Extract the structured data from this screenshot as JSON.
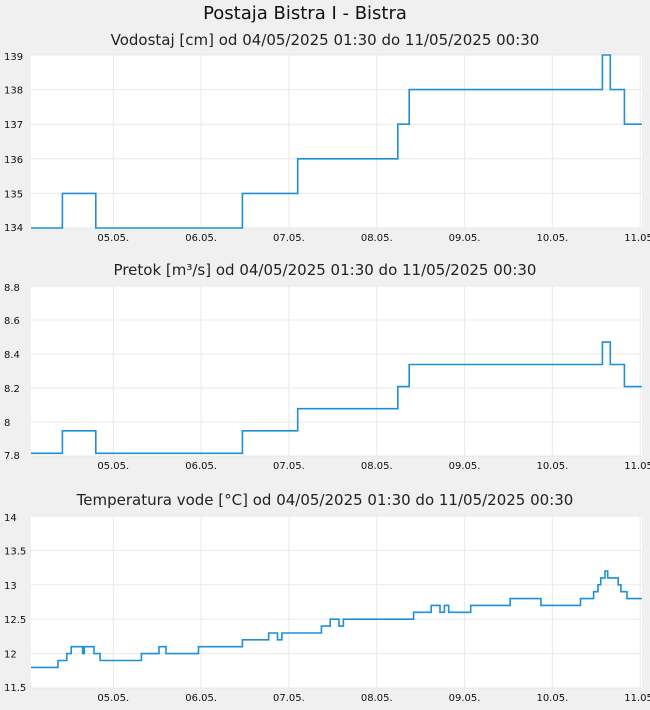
{
  "page_title": "Postaja Bistra I - Bistra",
  "series_color": "#1f8fd6",
  "chart_data": [
    {
      "type": "line",
      "title": "Vodostaj [cm] od 04/05/2025 01:30 do 11/05/2025 00:30",
      "ylim": [
        134,
        139
      ],
      "yticks": [
        "134",
        "135",
        "136",
        "137",
        "138",
        "139"
      ],
      "xticks": [
        "05.05.",
        "06.05.",
        "07.05.",
        "08.05.",
        "09.05.",
        "10.05.",
        "11.05."
      ],
      "xlim_days": [
        4.0625,
        11.02083
      ],
      "grid": true,
      "x": [
        4.0625,
        4.4,
        4.42,
        4.78,
        4.8,
        6.45,
        6.47,
        7.08,
        7.1,
        8.22,
        8.24,
        8.35,
        8.37,
        10.55,
        10.57,
        10.64,
        10.66,
        10.67,
        10.8,
        10.82,
        11.02
      ],
      "values": [
        134,
        134,
        135,
        135,
        134,
        134,
        135,
        135,
        136,
        136,
        137,
        137,
        138,
        138,
        139,
        139,
        138,
        138,
        138,
        137,
        137
      ]
    },
    {
      "type": "line",
      "title": "Pretok [m³/s] od 04/05/2025 01:30 do 11/05/2025 00:30",
      "ylim": [
        7.8,
        8.8
      ],
      "yticks": [
        "7.8",
        "8",
        "8.2",
        "8.4",
        "8.6",
        "8.8"
      ],
      "xticks": [
        "05.05.",
        "06.05.",
        "07.05.",
        "08.05.",
        "09.05.",
        "10.05.",
        "11.05."
      ],
      "xlim_days": [
        4.0625,
        11.02083
      ],
      "grid": true,
      "x": [
        4.0625,
        4.4,
        4.42,
        4.78,
        4.8,
        6.45,
        6.47,
        7.08,
        7.1,
        8.22,
        8.24,
        8.35,
        8.37,
        10.55,
        10.57,
        10.64,
        10.66,
        10.67,
        10.8,
        10.82,
        11.02
      ],
      "values": [
        7.816,
        7.816,
        7.948,
        7.948,
        7.816,
        7.816,
        7.948,
        7.948,
        8.078,
        8.078,
        8.208,
        8.208,
        8.338,
        8.338,
        8.47,
        8.47,
        8.338,
        8.338,
        8.338,
        8.208,
        8.208
      ]
    },
    {
      "type": "line",
      "title": "Temperatura vode [°C] od 04/05/2025 01:30 do 11/05/2025 00:30",
      "ylim": [
        11.5,
        14
      ],
      "yticks": [
        "11.5",
        "12",
        "12.5",
        "13",
        "13.5",
        "14"
      ],
      "xticks": [
        "05.05.",
        "06.05.",
        "07.05.",
        "08.05.",
        "09.05.",
        "10.05.",
        "11.05."
      ],
      "xlim_days": [
        4.0625,
        11.02083
      ],
      "grid": true,
      "x": [
        4.0625,
        4.35,
        4.37,
        4.42,
        4.47,
        4.52,
        4.62,
        4.65,
        4.67,
        4.75,
        4.78,
        4.85,
        5.3,
        5.32,
        5.5,
        5.52,
        5.55,
        5.6,
        5.95,
        5.97,
        6.45,
        6.47,
        6.75,
        6.77,
        6.85,
        6.87,
        6.9,
        6.92,
        7.35,
        7.37,
        7.45,
        7.47,
        7.55,
        7.57,
        7.6,
        7.62,
        8.4,
        8.42,
        8.6,
        8.62,
        8.7,
        8.72,
        8.75,
        8.77,
        8.8,
        8.82,
        9.05,
        9.07,
        9.5,
        9.52,
        9.85,
        9.87,
        10.3,
        10.32,
        10.45,
        10.47,
        10.52,
        10.55,
        10.57,
        10.6,
        10.63,
        10.65,
        10.68,
        10.75,
        10.78,
        10.82,
        10.85,
        10.9,
        10.92,
        11.02
      ],
      "values": [
        11.8,
        11.8,
        11.9,
        11.9,
        12.0,
        12.1,
        12.1,
        12.0,
        12.1,
        12.1,
        12.0,
        11.9,
        11.9,
        12.0,
        12.0,
        12.1,
        12.1,
        12.0,
        12.0,
        12.1,
        12.1,
        12.2,
        12.2,
        12.3,
        12.3,
        12.2,
        12.2,
        12.3,
        12.3,
        12.4,
        12.4,
        12.5,
        12.5,
        12.4,
        12.4,
        12.5,
        12.5,
        12.6,
        12.6,
        12.7,
        12.7,
        12.6,
        12.6,
        12.7,
        12.7,
        12.6,
        12.6,
        12.7,
        12.7,
        12.8,
        12.8,
        12.7,
        12.7,
        12.8,
        12.8,
        12.9,
        13.0,
        13.1,
        13.1,
        13.2,
        13.1,
        13.1,
        13.1,
        13.0,
        12.9,
        12.9,
        12.8,
        12.8,
        12.8,
        12.8
      ]
    }
  ]
}
